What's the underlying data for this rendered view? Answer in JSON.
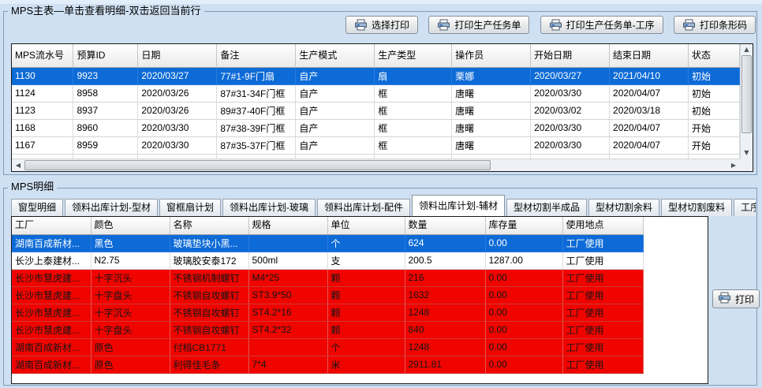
{
  "colors": {
    "page_bg": "#cfe0f2",
    "selected_row_bg": "#0d6bd7",
    "alert_row_bg": "#ef0400",
    "groupbox_border": "#7f9db9"
  },
  "main_panel": {
    "title": "MPS主表—单击查看明细-双击返回当前行",
    "buttons": [
      {
        "name": "select-print-button",
        "label": "选择打印"
      },
      {
        "name": "print-production-task-button",
        "label": "打印生产任务单"
      },
      {
        "name": "print-production-task-process-button",
        "label": "打印生产任务单-工序"
      },
      {
        "name": "print-barcode-button",
        "label": "打印条形码"
      }
    ],
    "table": {
      "columns": [
        "MPS流水号",
        "预算ID",
        "日期",
        "备注",
        "生产模式",
        "生产类型",
        "操作员",
        "开始日期",
        "结束日期",
        "状态"
      ],
      "rows": [
        {
          "state": "selected",
          "cells": [
            "1130",
            "9923",
            "2020/03/27",
            "77#1-9F门扇",
            "自产",
            "扇",
            "栗娜",
            "2020/03/27",
            "2021/04/10",
            "初始"
          ]
        },
        {
          "state": "",
          "cells": [
            "1124",
            "8958",
            "2020/03/26",
            "87#31-34F门框",
            "自产",
            "框",
            "唐曙",
            "2020/03/30",
            "2020/04/07",
            "初始"
          ]
        },
        {
          "state": "",
          "cells": [
            "1123",
            "8937",
            "2020/03/26",
            "89#37-40F门框",
            "自产",
            "框",
            "唐曙",
            "2020/03/02",
            "2020/03/18",
            "初始"
          ]
        },
        {
          "state": "",
          "cells": [
            "1168",
            "8960",
            "2020/03/30",
            "87#38-39F门框",
            "自产",
            "框",
            "唐曙",
            "2020/03/30",
            "2020/04/07",
            "开始"
          ]
        },
        {
          "state": "",
          "cells": [
            "1167",
            "8959",
            "2020/03/30",
            "87#35-37F门框",
            "自产",
            "框",
            "唐曙",
            "2020/03/30",
            "2020/04/07",
            "开始"
          ]
        }
      ]
    }
  },
  "detail_panel": {
    "title": "MPS明细",
    "tabs": [
      {
        "label": "窗型明细",
        "active": false
      },
      {
        "label": "领料出库计划-型材",
        "active": false
      },
      {
        "label": "窗框扇计划",
        "active": false
      },
      {
        "label": "领料出库计划-玻璃",
        "active": false
      },
      {
        "label": "领料出库计划-配件",
        "active": false
      },
      {
        "label": "领料出库计划-辅材",
        "active": true
      },
      {
        "label": "型材切割半成品",
        "active": false
      },
      {
        "label": "型材切割余料",
        "active": false
      },
      {
        "label": "型材切割废料",
        "active": false
      },
      {
        "label": "工序",
        "active": false
      }
    ],
    "print_button_label": "打印",
    "table": {
      "columns": [
        "工厂",
        "颜色",
        "名称",
        "规格",
        "单位",
        "数量",
        "库存量",
        "使用地点"
      ],
      "rows": [
        {
          "state": "selected",
          "cells": [
            "湖南百成新材...",
            "黑色",
            "玻璃垫块小黑...",
            "",
            "个",
            "624",
            "0.00",
            "工厂使用"
          ]
        },
        {
          "state": "",
          "cells": [
            "长沙上泰建材...",
            "N2.75",
            "玻璃胶安泰172",
            "500ml",
            "支",
            "200.5",
            "1287.00",
            "工厂使用"
          ]
        },
        {
          "state": "alert",
          "cells": [
            "长沙市慧虎建...",
            "十字沉头",
            "不锈钢机制螺钉",
            "M4*25",
            "颗",
            "216",
            "0.00",
            "工厂使用"
          ]
        },
        {
          "state": "alert",
          "cells": [
            "长沙市慧虎建...",
            "十字盘头",
            "不锈钢自攻螺钉",
            "ST3.9*50",
            "颗",
            "1632",
            "0.00",
            "工厂使用"
          ]
        },
        {
          "state": "alert",
          "cells": [
            "长沙市慧虎建...",
            "十字沉头",
            "不锈钢自攻螺钉",
            "ST4.2*16",
            "颗",
            "1248",
            "0.00",
            "工厂使用"
          ]
        },
        {
          "state": "alert",
          "cells": [
            "长沙市慧虎建...",
            "十字盘头",
            "不锈钢自攻螺钉",
            "ST4.2*32",
            "颗",
            "840",
            "0.00",
            "工厂使用"
          ]
        },
        {
          "state": "alert",
          "cells": [
            "湖南百成新材...",
            "原色",
            "付档CB1771",
            "",
            "个",
            "1248",
            "0.00",
            "工厂使用"
          ]
        },
        {
          "state": "alert",
          "cells": [
            "湖南百成新材...",
            "原色",
            "利得佳毛条",
            "7*4",
            "米",
            "2911.81",
            "0.00",
            "工厂使用"
          ]
        }
      ]
    }
  }
}
